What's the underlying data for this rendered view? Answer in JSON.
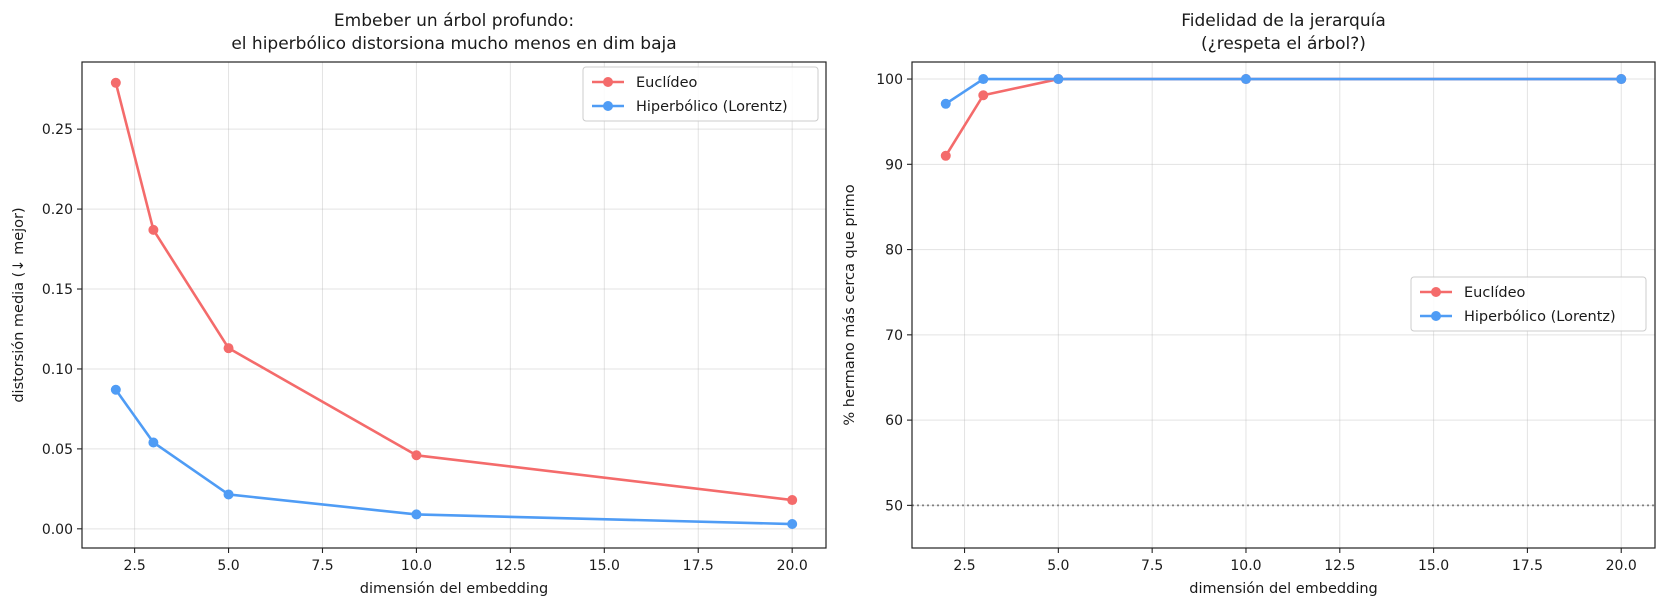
{
  "chart_data": [
    {
      "type": "line",
      "title": [
        "Embeber un árbol profundo:",
        "el hiperbólico distorsiona mucho menos en dim baja"
      ],
      "xlabel": "dimensión del embedding",
      "ylabel": "distorsión media (↓ mejor)",
      "xlim": [
        1.1,
        20.9
      ],
      "ylim": [
        -0.012,
        0.292
      ],
      "xticks": [
        2.5,
        5.0,
        7.5,
        10.0,
        12.5,
        15.0,
        17.5,
        20.0
      ],
      "xtick_labels": [
        "2.5",
        "5.0",
        "7.5",
        "10.0",
        "12.5",
        "15.0",
        "17.5",
        "20.0"
      ],
      "yticks": [
        0.0,
        0.05,
        0.1,
        0.15,
        0.2,
        0.25
      ],
      "ytick_labels": [
        "0.00",
        "0.05",
        "0.10",
        "0.15",
        "0.20",
        "0.25"
      ],
      "grid": true,
      "legend_position": "top-right",
      "x": [
        2,
        3,
        5,
        10,
        20
      ],
      "series": [
        {
          "name": "Euclídeo",
          "color": "#f46b6b",
          "values": [
            0.279,
            0.187,
            0.113,
            0.046,
            0.018
          ]
        },
        {
          "name": "Hiperbólico (Lorentz)",
          "color": "#4f9cf5",
          "values": [
            0.087,
            0.054,
            0.0215,
            0.009,
            0.003
          ]
        }
      ]
    },
    {
      "type": "line",
      "title": [
        "Fidelidad de la jerarquía",
        "(¿respeta el árbol?)"
      ],
      "xlabel": "dimensión del embedding",
      "ylabel": "% hermano más cerca que primo",
      "xlim": [
        1.1,
        20.9
      ],
      "ylim": [
        45,
        102
      ],
      "xticks": [
        2.5,
        5.0,
        7.5,
        10.0,
        12.5,
        15.0,
        17.5,
        20.0
      ],
      "xtick_labels": [
        "2.5",
        "5.0",
        "7.5",
        "10.0",
        "12.5",
        "15.0",
        "17.5",
        "20.0"
      ],
      "yticks": [
        50,
        60,
        70,
        80,
        90,
        100
      ],
      "ytick_labels": [
        "50",
        "60",
        "70",
        "80",
        "90",
        "100"
      ],
      "grid": true,
      "legend_position": "center-right",
      "reference_line": {
        "y": 50,
        "style": "dotted",
        "color": "#808080"
      },
      "x": [
        2,
        3,
        5,
        10,
        20
      ],
      "series": [
        {
          "name": "Euclídeo",
          "color": "#f46b6b",
          "values": [
            91.0,
            98.1,
            100.0,
            100.0,
            100.0
          ]
        },
        {
          "name": "Hiperbólico (Lorentz)",
          "color": "#4f9cf5",
          "values": [
            97.1,
            100.0,
            100.0,
            100.0,
            100.0
          ]
        }
      ]
    }
  ]
}
